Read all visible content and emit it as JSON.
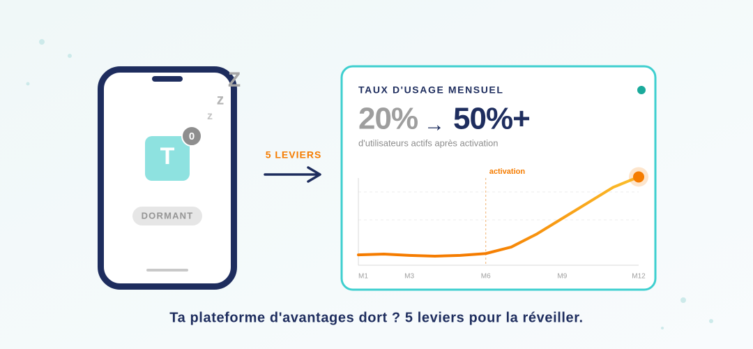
{
  "phone": {
    "sleep": [
      "z",
      "z",
      "Z"
    ],
    "icon_letter": "T",
    "badge": "0",
    "status": "DORMANT"
  },
  "arrow_label": "5 LEVIERS",
  "card": {
    "title": "TAUX D'USAGE MENSUEL",
    "from": "20%",
    "arrow": "→",
    "to": "50%+",
    "subtitle": "d'utilisateurs actifs après activation"
  },
  "chart_data": {
    "type": "line",
    "x": [
      1,
      2,
      3,
      4,
      5,
      6,
      7,
      8,
      9,
      10,
      11,
      12
    ],
    "values": [
      20,
      20.3,
      19.8,
      19.5,
      19.8,
      20.5,
      23,
      28,
      34,
      40,
      46,
      50
    ],
    "colors": [
      "#f57c00",
      "#fbc02d"
    ],
    "xlim": [
      1,
      12
    ],
    "ylim": [
      16,
      52
    ],
    "xticks": [
      {
        "value": 1,
        "label": "M1"
      },
      {
        "value": 3,
        "label": "M3"
      },
      {
        "value": 6,
        "label": "M6"
      },
      {
        "value": 9,
        "label": "M9"
      },
      {
        "value": 12,
        "label": "M12"
      }
    ],
    "annotation": {
      "x": 6,
      "text": "activation"
    }
  },
  "footer": "Ta plateforme d'avantages dort ? 5 leviers pour la réveiller."
}
